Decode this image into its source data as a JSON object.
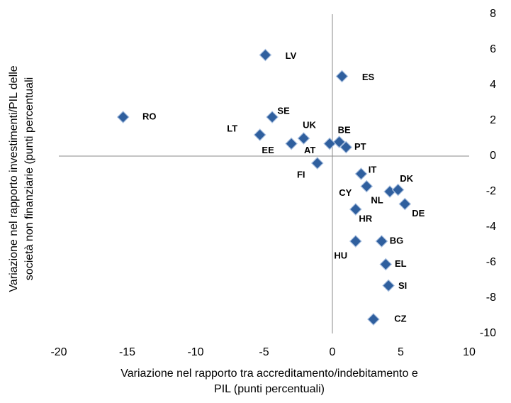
{
  "chart_data": {
    "type": "scatter",
    "x_label": [
      "Variazione nel rapporto tra accreditamento/indebitamento e",
      "PIL (punti percentuali)"
    ],
    "y_label": [
      "Variazione nel rapporto investimenti/PIL delle",
      "società non finanziarie (punti percentuali"
    ],
    "color": "#2f5f9e",
    "xlim": [
      -20,
      10
    ],
    "xticks": [
      -20,
      -15,
      -10,
      -5,
      0,
      5,
      10
    ],
    "ylim": [
      -10,
      8
    ],
    "yticks": [
      -10,
      -8,
      -6,
      -4,
      -2,
      0,
      2,
      4,
      6,
      8
    ],
    "labels": [
      "RO",
      "LV",
      "ES",
      "SE",
      "LT",
      "UK",
      "EE",
      "BE",
      "AT",
      "PT",
      "FI",
      "IT",
      "CY",
      "NL",
      "DK",
      "DE",
      "HR",
      "BG",
      "HU",
      "EL",
      "SI",
      "CZ"
    ],
    "x": [
      -15.3,
      -4.9,
      0.7,
      -4.4,
      -5.3,
      -2.1,
      -3.0,
      0.5,
      -0.2,
      1.0,
      -1.1,
      2.1,
      2.5,
      4.2,
      4.8,
      5.3,
      1.7,
      3.6,
      1.7,
      3.9,
      4.1,
      3.0
    ],
    "values": [
      2.2,
      5.7,
      4.5,
      2.2,
      1.2,
      1.0,
      0.7,
      0.8,
      0.7,
      0.5,
      -0.4,
      -1.0,
      -1.7,
      -2.0,
      -1.9,
      -2.7,
      -3.0,
      -4.8,
      -4.8,
      -6.1,
      -7.3,
      -9.2
    ]
  }
}
